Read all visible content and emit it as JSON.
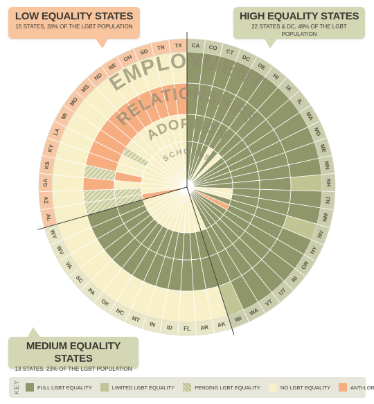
{
  "callouts": {
    "low": {
      "title": "LOW EQUALITY STATES",
      "subtitle": "15 STATES, 28% OF THE LGBT POPULATION"
    },
    "high": {
      "title": "HIGH EQUALITY STATES",
      "subtitle": "22 STATES & DC, 49% OF THE LGBT POPULATION"
    },
    "medium": {
      "title": "MEDIUM EQUALITY STATES",
      "subtitle": "13 STATES, 23% OF THE LGBT POPULATION"
    }
  },
  "key": {
    "label": "KEY",
    "items": [
      {
        "code": "F",
        "label": "FULL LGBT EQUALITY",
        "color": "#8f976a"
      },
      {
        "code": "L",
        "label": "LIMITED LGBT EQUALITY",
        "color": "#c0c593"
      },
      {
        "code": "P",
        "label": "PENDING LGBT EQUALITY",
        "color": "#dfe0bc"
      },
      {
        "code": "N",
        "label": "NO LGBT EQUALITY",
        "color": "#f8f0c9"
      },
      {
        "code": "A",
        "label": "ANTI-LGBT LAW",
        "color": "#f6ae80"
      }
    ]
  },
  "chart_data": {
    "type": "radial",
    "ring_labels": [
      "EMPLOYMENT",
      "RELATIONSHIPS",
      "ADOPTION",
      "SCHOOLS"
    ],
    "ring_order_outer_to_inner": [
      "EMPLOYMENT",
      "RELATIONSHIPS",
      "ADOPTION",
      "SCHOOLS"
    ],
    "groups": {
      "high": "High Equality States",
      "medium": "Medium Equality States",
      "low": "Low Equality States"
    },
    "states": [
      {
        "abbr": "CA",
        "group": "high",
        "rings": [
          "F",
          "F",
          "F",
          "F"
        ]
      },
      {
        "abbr": "CO",
        "group": "high",
        "rings": [
          "F",
          "F",
          "F",
          "F"
        ]
      },
      {
        "abbr": "CT",
        "group": "high",
        "rings": [
          "F",
          "F",
          "F",
          "F"
        ]
      },
      {
        "abbr": "DC",
        "group": "high",
        "rings": [
          "F",
          "F",
          "F",
          "F"
        ]
      },
      {
        "abbr": "DE",
        "group": "high",
        "rings": [
          "F",
          "F",
          "F",
          "N"
        ]
      },
      {
        "abbr": "HI",
        "group": "high",
        "rings": [
          "F",
          "F",
          "F",
          "F"
        ]
      },
      {
        "abbr": "IA",
        "group": "high",
        "rings": [
          "F",
          "F",
          "F",
          "N"
        ]
      },
      {
        "abbr": "IL",
        "group": "high",
        "rings": [
          "F",
          "F",
          "F",
          "F"
        ]
      },
      {
        "abbr": "MA",
        "group": "high",
        "rings": [
          "F",
          "F",
          "F",
          "F"
        ]
      },
      {
        "abbr": "MD",
        "group": "high",
        "rings": [
          "F",
          "F",
          "F",
          "F"
        ]
      },
      {
        "abbr": "ME",
        "group": "high",
        "rings": [
          "F",
          "F",
          "F",
          "F"
        ]
      },
      {
        "abbr": "MN",
        "group": "high",
        "rings": [
          "F",
          "F",
          "F",
          "F"
        ]
      },
      {
        "abbr": "NH",
        "group": "high",
        "rings": [
          "L",
          "F",
          "F",
          "F"
        ]
      },
      {
        "abbr": "NJ",
        "group": "high",
        "rings": [
          "F",
          "F",
          "F",
          "N"
        ]
      },
      {
        "abbr": "NM",
        "group": "high",
        "rings": [
          "F",
          "F",
          "F",
          "N"
        ]
      },
      {
        "abbr": "NV",
        "group": "high",
        "rings": [
          "L",
          "F",
          "F",
          "F"
        ]
      },
      {
        "abbr": "NY",
        "group": "high",
        "rings": [
          "F",
          "F",
          "F",
          "A"
        ]
      },
      {
        "abbr": "OR",
        "group": "high",
        "rings": [
          "F",
          "F",
          "F",
          "F"
        ]
      },
      {
        "abbr": "RI",
        "group": "high",
        "rings": [
          "F",
          "F",
          "F",
          "F"
        ]
      },
      {
        "abbr": "UT",
        "group": "high",
        "rings": [
          "F",
          "F",
          "F",
          "F"
        ]
      },
      {
        "abbr": "VT",
        "group": "high",
        "rings": [
          "F",
          "F",
          "F",
          "F"
        ]
      },
      {
        "abbr": "WA",
        "group": "high",
        "rings": [
          "F",
          "F",
          "F",
          "F"
        ]
      },
      {
        "abbr": "WI",
        "group": "high",
        "rings": [
          "L",
          "F",
          "F",
          "N"
        ]
      },
      {
        "abbr": "AK",
        "group": "medium",
        "rings": [
          "N",
          "F",
          "F",
          "N"
        ]
      },
      {
        "abbr": "AR",
        "group": "medium",
        "rings": [
          "N",
          "F",
          "F",
          "N"
        ]
      },
      {
        "abbr": "FL",
        "group": "medium",
        "rings": [
          "N",
          "F",
          "F",
          "N"
        ]
      },
      {
        "abbr": "ID",
        "group": "medium",
        "rings": [
          "N",
          "F",
          "F",
          "N"
        ]
      },
      {
        "abbr": "IN",
        "group": "medium",
        "rings": [
          "N",
          "F",
          "F",
          "N"
        ]
      },
      {
        "abbr": "MT",
        "group": "medium",
        "rings": [
          "N",
          "F",
          "F",
          "N"
        ]
      },
      {
        "abbr": "NC",
        "group": "medium",
        "rings": [
          "N",
          "F",
          "F",
          "N"
        ]
      },
      {
        "abbr": "OK",
        "group": "medium",
        "rings": [
          "N",
          "F",
          "F",
          "N"
        ]
      },
      {
        "abbr": "PA",
        "group": "medium",
        "rings": [
          "N",
          "F",
          "F",
          "N"
        ]
      },
      {
        "abbr": "SC",
        "group": "medium",
        "rings": [
          "N",
          "F",
          "F",
          "N"
        ]
      },
      {
        "abbr": "VA",
        "group": "medium",
        "rings": [
          "N",
          "F",
          "F",
          "N"
        ]
      },
      {
        "abbr": "WV",
        "group": "medium",
        "rings": [
          "N",
          "F",
          "F",
          "N"
        ]
      },
      {
        "abbr": "WY",
        "group": "medium",
        "rings": [
          "N",
          "F",
          "F",
          "N"
        ]
      },
      {
        "abbr": "AL",
        "group": "low",
        "rings": [
          "N",
          "P",
          "P",
          "A"
        ]
      },
      {
        "abbr": "AZ",
        "group": "low",
        "rings": [
          "N",
          "P",
          "P",
          "N"
        ]
      },
      {
        "abbr": "GA",
        "group": "low",
        "rings": [
          "N",
          "A",
          "N",
          "N"
        ]
      },
      {
        "abbr": "KS",
        "group": "low",
        "rings": [
          "N",
          "P",
          "A",
          "N"
        ]
      },
      {
        "abbr": "KY",
        "group": "low",
        "rings": [
          "N",
          "A",
          "N",
          "N"
        ]
      },
      {
        "abbr": "LA",
        "group": "low",
        "rings": [
          "N",
          "A",
          "N",
          "N"
        ]
      },
      {
        "abbr": "MI",
        "group": "low",
        "rings": [
          "N",
          "A",
          "P",
          "N"
        ]
      },
      {
        "abbr": "MO",
        "group": "low",
        "rings": [
          "N",
          "A",
          "N",
          "N"
        ]
      },
      {
        "abbr": "MS",
        "group": "low",
        "rings": [
          "N",
          "A",
          "N",
          "N"
        ]
      },
      {
        "abbr": "ND",
        "group": "low",
        "rings": [
          "N",
          "A",
          "N",
          "N"
        ]
      },
      {
        "abbr": "NE",
        "group": "low",
        "rings": [
          "N",
          "A",
          "N",
          "N"
        ]
      },
      {
        "abbr": "OH",
        "group": "low",
        "rings": [
          "N",
          "A",
          "N",
          "N"
        ]
      },
      {
        "abbr": "SD",
        "group": "low",
        "rings": [
          "N",
          "A",
          "N",
          "N"
        ]
      },
      {
        "abbr": "TN",
        "group": "low",
        "rings": [
          "N",
          "A",
          "N",
          "N"
        ]
      },
      {
        "abbr": "TX",
        "group": "low",
        "rings": [
          "N",
          "A",
          "N",
          "N"
        ]
      }
    ]
  }
}
